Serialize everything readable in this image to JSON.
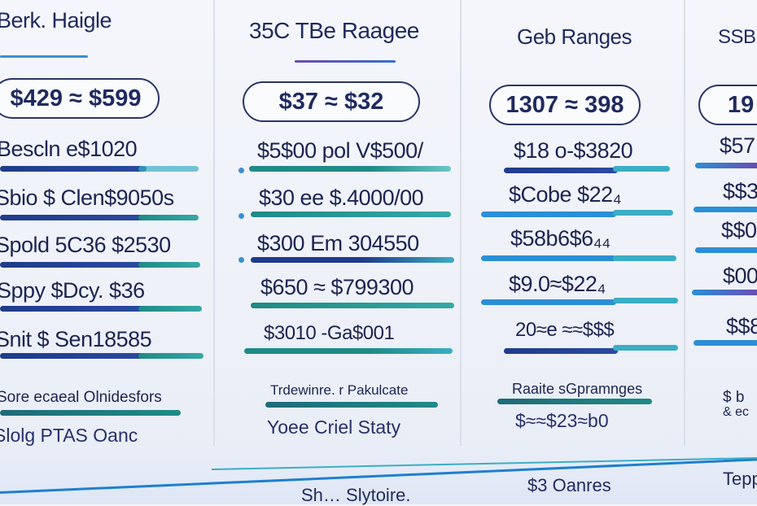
{
  "columns": [
    {
      "header": "Berk. Haigle",
      "pill": "$429 ≈ $599",
      "rows": [
        "Bescln e$1020",
        "Sbio $ Clen$9050s",
        "Spold 5C36 $2530",
        "Sppy $Dcy. $36",
        "Snit $ Sen18585"
      ],
      "footer_a": "Sore ecaeal Olnidesfors",
      "footer_b": "Slolg PTAS Oanc"
    },
    {
      "header": "35C TBe Raagee",
      "pill": "$37 ≈ $32",
      "rows": [
        "$5$00 pol V$500/",
        "$30 ee $.4000/00",
        "$300 Em 304550",
        "$650 ≈ $799300",
        "$3010 -Ga$001"
      ],
      "footer_a": "Trdewinre. r Pakulcate",
      "footer_b": "Yoee Criel Staty"
    },
    {
      "header": "Geb Ranges",
      "pill": "1307 ≈ 398",
      "rows": [
        "$18 o-$3820",
        "$Cobe $22₄",
        "$58b6$6₄₄",
        "$9.0≈$22₄",
        "20≈e ≈≈$$$"
      ],
      "footer_a": "Raaite sGpramnges",
      "footer_b": "$≈≈$23≈b0"
    },
    {
      "header": "SSB",
      "pill": "19",
      "rows": [
        "$57",
        "$$3",
        "$$0",
        "$00",
        "$$8"
      ],
      "footer_a": "$ b",
      "footer_b": "& ec"
    }
  ],
  "footer": {
    "left": "Sh… Slytoire.",
    "middle": "$3 Oanres",
    "right": "Tepp"
  },
  "colors": {
    "accent_dark": "#1f3b8a",
    "accent_teal": "#1e8a86",
    "accent_blue": "#1e7fd0",
    "accent_purple": "#6a4bb0"
  }
}
